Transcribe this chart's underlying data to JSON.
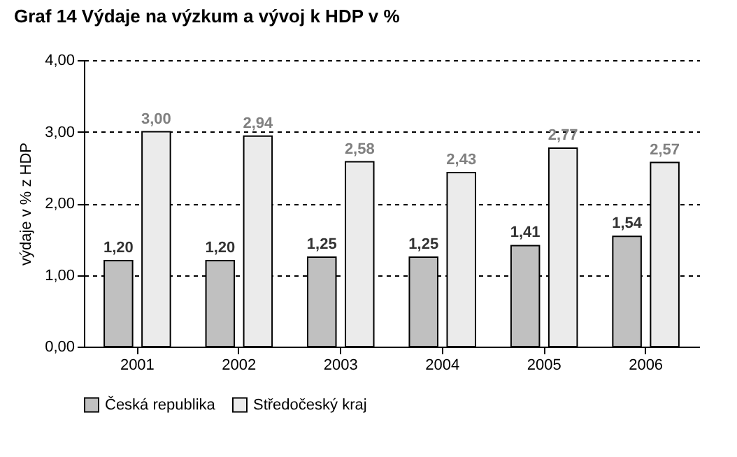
{
  "chart_data": {
    "type": "bar",
    "title": "Graf 14 Výdaje na výzkum a vývoj k HDP v %",
    "ylabel": "výdaje v % z HDP",
    "categories": [
      "2001",
      "2002",
      "2003",
      "2004",
      "2005",
      "2006"
    ],
    "series": [
      {
        "name": "Česká republika",
        "color": "#c0c0c0",
        "values": [
          1.2,
          1.2,
          1.25,
          1.25,
          1.41,
          1.54
        ],
        "value_labels": [
          "1,20",
          "1,20",
          "1,25",
          "1,25",
          "1,41",
          "1,54"
        ]
      },
      {
        "name": "Středočeský kraj",
        "color": "#ebebeb",
        "values": [
          3.0,
          2.94,
          2.58,
          2.43,
          2.77,
          2.57
        ],
        "value_labels": [
          "3,00",
          "2,94",
          "2,58",
          "2,43",
          "2,77",
          "2,57"
        ]
      }
    ],
    "ylim": [
      0,
      4
    ],
    "yticks": [
      {
        "value": 0,
        "label": "0,00"
      },
      {
        "value": 1,
        "label": "1,00"
      },
      {
        "value": 2,
        "label": "2,00"
      },
      {
        "value": 3,
        "label": "3,00"
      },
      {
        "value": 4,
        "label": "4,00"
      }
    ],
    "grid": "y",
    "legend": "bottom"
  }
}
